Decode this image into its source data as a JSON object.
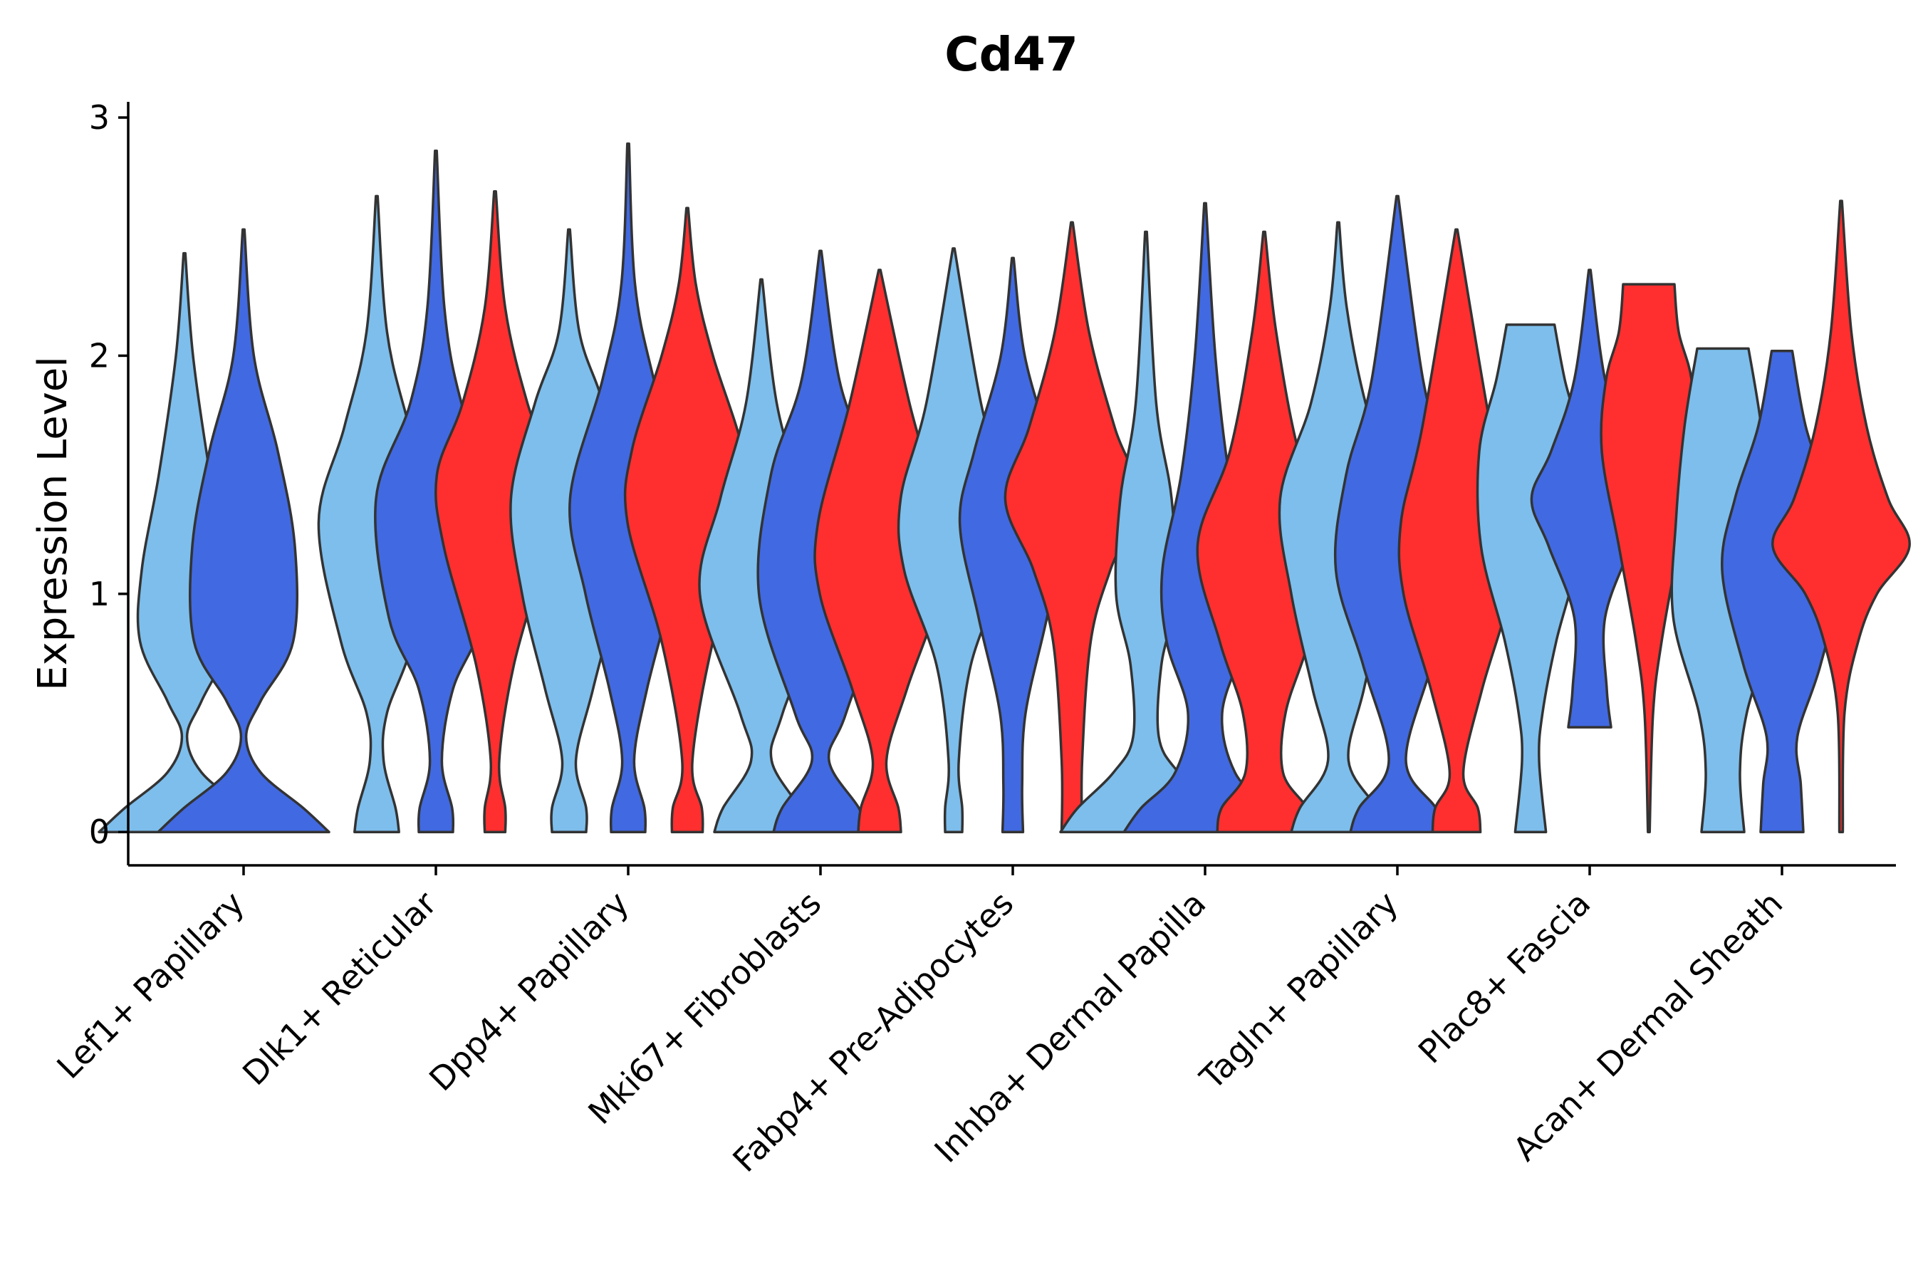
{
  "chart_data": {
    "type": "violin",
    "title": "Cd47",
    "xlabel": "",
    "ylabel": "Expression Level",
    "ylim": [
      -0.14,
      3.03
    ],
    "yticks": [
      0,
      1,
      2,
      3
    ],
    "group_colors": [
      "#7DBEEC",
      "#4169E1",
      "#FF2F2F"
    ],
    "categories": [
      "Lef1+ Papillary",
      "Dlk1+ Reticular",
      "Dpp4+ Papillary",
      "Mki67+ Fibroblasts",
      "Fabp4+ Pre-Adipocytes",
      "Inhba+ Dermal Papilla",
      "Tagln+ Papillary",
      "Plac8+ Fascia",
      "Acan+ Dermal Sheath"
    ],
    "violins": [
      {
        "category": 0,
        "group": 0,
        "min": 0,
        "max": 2.43,
        "profile": [
          [
            0,
            1.0
          ],
          [
            0.1,
            0.7
          ],
          [
            0.25,
            0.2
          ],
          [
            0.4,
            0.03
          ],
          [
            0.55,
            0.2
          ],
          [
            0.8,
            0.52
          ],
          [
            1.1,
            0.5
          ],
          [
            1.5,
            0.3
          ],
          [
            2.0,
            0.1
          ],
          [
            2.43,
            0.01
          ]
        ]
      },
      {
        "category": 0,
        "group": 1,
        "min": 0,
        "max": 2.53,
        "profile": [
          [
            0,
            1.0
          ],
          [
            0.1,
            0.7
          ],
          [
            0.25,
            0.2
          ],
          [
            0.4,
            0.03
          ],
          [
            0.55,
            0.2
          ],
          [
            0.8,
            0.58
          ],
          [
            1.2,
            0.6
          ],
          [
            1.6,
            0.4
          ],
          [
            2.0,
            0.12
          ],
          [
            2.53,
            0.01
          ]
        ]
      },
      {
        "category": 1,
        "group": 0,
        "min": 0,
        "max": 2.67,
        "profile": [
          [
            0,
            0.26
          ],
          [
            0.1,
            0.22
          ],
          [
            0.3,
            0.08
          ],
          [
            0.5,
            0.12
          ],
          [
            0.8,
            0.42
          ],
          [
            1.3,
            0.68
          ],
          [
            1.7,
            0.38
          ],
          [
            2.1,
            0.12
          ],
          [
            2.67,
            0.01
          ]
        ]
      },
      {
        "category": 1,
        "group": 1,
        "min": 0,
        "max": 2.86,
        "profile": [
          [
            0,
            0.2
          ],
          [
            0.1,
            0.19
          ],
          [
            0.3,
            0.07
          ],
          [
            0.6,
            0.2
          ],
          [
            0.9,
            0.55
          ],
          [
            1.4,
            0.7
          ],
          [
            1.8,
            0.3
          ],
          [
            2.2,
            0.1
          ],
          [
            2.86,
            0.01
          ]
        ]
      },
      {
        "category": 1,
        "group": 2,
        "min": 0,
        "max": 2.69,
        "profile": [
          [
            0,
            0.12
          ],
          [
            0.1,
            0.12
          ],
          [
            0.3,
            0.05
          ],
          [
            0.7,
            0.22
          ],
          [
            1.2,
            0.6
          ],
          [
            1.5,
            0.68
          ],
          [
            1.8,
            0.38
          ],
          [
            2.2,
            0.12
          ],
          [
            2.69,
            0.01
          ]
        ]
      },
      {
        "category": 2,
        "group": 0,
        "min": 0,
        "max": 2.53,
        "profile": [
          [
            0,
            0.2
          ],
          [
            0.1,
            0.2
          ],
          [
            0.3,
            0.08
          ],
          [
            0.6,
            0.28
          ],
          [
            1.0,
            0.55
          ],
          [
            1.4,
            0.68
          ],
          [
            1.8,
            0.4
          ],
          [
            2.1,
            0.12
          ],
          [
            2.53,
            0.01
          ]
        ]
      },
      {
        "category": 2,
        "group": 1,
        "min": 0,
        "max": 2.89,
        "profile": [
          [
            0,
            0.2
          ],
          [
            0.1,
            0.19
          ],
          [
            0.3,
            0.07
          ],
          [
            0.6,
            0.22
          ],
          [
            1.0,
            0.5
          ],
          [
            1.4,
            0.68
          ],
          [
            1.9,
            0.3
          ],
          [
            2.3,
            0.08
          ],
          [
            2.89,
            0.01
          ]
        ]
      },
      {
        "category": 2,
        "group": 2,
        "min": 0,
        "max": 2.62,
        "profile": [
          [
            0,
            0.18
          ],
          [
            0.1,
            0.17
          ],
          [
            0.3,
            0.06
          ],
          [
            0.8,
            0.3
          ],
          [
            1.3,
            0.7
          ],
          [
            1.6,
            0.65
          ],
          [
            2.0,
            0.3
          ],
          [
            2.3,
            0.1
          ],
          [
            2.62,
            0.01
          ]
        ]
      },
      {
        "category": 3,
        "group": 0,
        "min": 0,
        "max": 2.32,
        "profile": [
          [
            0,
            0.55
          ],
          [
            0.1,
            0.45
          ],
          [
            0.3,
            0.12
          ],
          [
            0.5,
            0.25
          ],
          [
            1.0,
            0.72
          ],
          [
            1.4,
            0.48
          ],
          [
            1.8,
            0.18
          ],
          [
            2.32,
            0.01
          ]
        ]
      },
      {
        "category": 3,
        "group": 1,
        "min": 0,
        "max": 2.44,
        "profile": [
          [
            0,
            0.55
          ],
          [
            0.1,
            0.45
          ],
          [
            0.3,
            0.1
          ],
          [
            0.5,
            0.3
          ],
          [
            1.0,
            0.72
          ],
          [
            1.5,
            0.58
          ],
          [
            1.9,
            0.22
          ],
          [
            2.44,
            0.01
          ]
        ]
      },
      {
        "category": 3,
        "group": 2,
        "min": 0,
        "max": 2.36,
        "profile": [
          [
            0,
            0.25
          ],
          [
            0.1,
            0.22
          ],
          [
            0.3,
            0.08
          ],
          [
            0.6,
            0.32
          ],
          [
            1.0,
            0.7
          ],
          [
            1.3,
            0.72
          ],
          [
            1.8,
            0.35
          ],
          [
            2.36,
            0.01
          ]
        ]
      },
      {
        "category": 4,
        "group": 0,
        "min": 0,
        "max": 2.45,
        "profile": [
          [
            0,
            0.1
          ],
          [
            0.1,
            0.1
          ],
          [
            0.3,
            0.06
          ],
          [
            0.7,
            0.2
          ],
          [
            1.1,
            0.58
          ],
          [
            1.4,
            0.62
          ],
          [
            1.8,
            0.32
          ],
          [
            2.45,
            0.01
          ]
        ]
      },
      {
        "category": 4,
        "group": 1,
        "min": 0,
        "max": 2.41,
        "profile": [
          [
            0,
            0.12
          ],
          [
            0.2,
            0.11
          ],
          [
            0.5,
            0.15
          ],
          [
            0.9,
            0.4
          ],
          [
            1.3,
            0.62
          ],
          [
            1.6,
            0.45
          ],
          [
            2.0,
            0.14
          ],
          [
            2.41,
            0.01
          ]
        ]
      },
      {
        "category": 4,
        "group": 2,
        "min": 0,
        "max": 2.56,
        "profile": [
          [
            0,
            0.12
          ],
          [
            0.3,
            0.12
          ],
          [
            0.8,
            0.22
          ],
          [
            1.1,
            0.45
          ],
          [
            1.4,
            0.78
          ],
          [
            1.7,
            0.5
          ],
          [
            2.1,
            0.2
          ],
          [
            2.56,
            0.01
          ]
        ]
      },
      {
        "category": 5,
        "group": 0,
        "min": 0,
        "max": 2.52,
        "profile": [
          [
            0,
            1.0
          ],
          [
            0.1,
            0.8
          ],
          [
            0.25,
            0.38
          ],
          [
            0.4,
            0.15
          ],
          [
            0.7,
            0.18
          ],
          [
            1.0,
            0.35
          ],
          [
            1.4,
            0.3
          ],
          [
            1.8,
            0.12
          ],
          [
            2.52,
            0.01
          ]
        ]
      },
      {
        "category": 5,
        "group": 1,
        "min": 0,
        "max": 2.64,
        "profile": [
          [
            0,
            0.95
          ],
          [
            0.1,
            0.75
          ],
          [
            0.25,
            0.35
          ],
          [
            0.5,
            0.2
          ],
          [
            0.8,
            0.45
          ],
          [
            1.1,
            0.5
          ],
          [
            1.5,
            0.28
          ],
          [
            2.0,
            0.12
          ],
          [
            2.64,
            0.01
          ]
        ]
      },
      {
        "category": 5,
        "group": 2,
        "min": 0,
        "max": 2.52,
        "profile": [
          [
            0,
            0.55
          ],
          [
            0.1,
            0.5
          ],
          [
            0.25,
            0.22
          ],
          [
            0.5,
            0.25
          ],
          [
            0.8,
            0.52
          ],
          [
            1.2,
            0.78
          ],
          [
            1.6,
            0.4
          ],
          [
            2.1,
            0.14
          ],
          [
            2.52,
            0.01
          ]
        ]
      },
      {
        "category": 6,
        "group": 0,
        "min": 0,
        "max": 2.56,
        "profile": [
          [
            0,
            0.55
          ],
          [
            0.1,
            0.45
          ],
          [
            0.3,
            0.12
          ],
          [
            0.6,
            0.3
          ],
          [
            1.0,
            0.55
          ],
          [
            1.4,
            0.68
          ],
          [
            1.8,
            0.32
          ],
          [
            2.2,
            0.1
          ],
          [
            2.56,
            0.01
          ]
        ]
      },
      {
        "category": 6,
        "group": 1,
        "min": 0,
        "max": 2.67,
        "profile": [
          [
            0,
            0.55
          ],
          [
            0.1,
            0.45
          ],
          [
            0.3,
            0.1
          ],
          [
            0.7,
            0.4
          ],
          [
            1.1,
            0.72
          ],
          [
            1.5,
            0.6
          ],
          [
            1.9,
            0.3
          ],
          [
            2.67,
            0.01
          ]
        ]
      },
      {
        "category": 6,
        "group": 2,
        "min": 0,
        "max": 2.53,
        "profile": [
          [
            0,
            0.28
          ],
          [
            0.1,
            0.25
          ],
          [
            0.25,
            0.08
          ],
          [
            0.6,
            0.3
          ],
          [
            1.0,
            0.62
          ],
          [
            1.3,
            0.65
          ],
          [
            1.7,
            0.4
          ],
          [
            2.53,
            0.01
          ]
        ]
      },
      {
        "category": 7,
        "group": 0,
        "min": 0,
        "max": 2.13,
        "profile": [
          [
            0,
            0.18
          ],
          [
            0.3,
            0.1
          ],
          [
            0.5,
            0.14
          ],
          [
            0.8,
            0.3
          ],
          [
            1.2,
            0.58
          ],
          [
            1.6,
            0.6
          ],
          [
            1.9,
            0.4
          ],
          [
            2.13,
            0.28
          ]
        ]
      },
      {
        "category": 7,
        "group": 1,
        "min": 0.44,
        "max": 2.36,
        "profile": [
          [
            0.44,
            0.25
          ],
          [
            0.6,
            0.2
          ],
          [
            0.9,
            0.18
          ],
          [
            1.2,
            0.48
          ],
          [
            1.4,
            0.68
          ],
          [
            1.6,
            0.45
          ],
          [
            1.9,
            0.18
          ],
          [
            2.36,
            0.01
          ]
        ]
      },
      {
        "category": 7,
        "group": 2,
        "min": 0,
        "max": 2.3,
        "profile": [
          [
            0,
            0.01
          ],
          [
            0.5,
            0.05
          ],
          [
            0.8,
            0.15
          ],
          [
            1.2,
            0.35
          ],
          [
            1.6,
            0.55
          ],
          [
            1.9,
            0.5
          ],
          [
            2.1,
            0.35
          ],
          [
            2.3,
            0.3
          ]
        ]
      },
      {
        "category": 8,
        "group": 0,
        "min": 0,
        "max": 2.03,
        "profile": [
          [
            0,
            0.25
          ],
          [
            0.25,
            0.2
          ],
          [
            0.5,
            0.28
          ],
          [
            0.9,
            0.58
          ],
          [
            1.3,
            0.55
          ],
          [
            1.7,
            0.45
          ],
          [
            2.03,
            0.3
          ]
        ]
      },
      {
        "category": 8,
        "group": 1,
        "min": 0,
        "max": 2.02,
        "profile": [
          [
            0,
            0.25
          ],
          [
            0.2,
            0.22
          ],
          [
            0.4,
            0.18
          ],
          [
            0.7,
            0.45
          ],
          [
            1.1,
            0.7
          ],
          [
            1.4,
            0.55
          ],
          [
            1.7,
            0.28
          ],
          [
            2.02,
            0.12
          ]
        ]
      },
      {
        "category": 8,
        "group": 2,
        "min": 0,
        "max": 2.65,
        "profile": [
          [
            0,
            0.02
          ],
          [
            0.5,
            0.04
          ],
          [
            0.8,
            0.2
          ],
          [
            1.0,
            0.42
          ],
          [
            1.2,
            0.8
          ],
          [
            1.4,
            0.55
          ],
          [
            1.7,
            0.3
          ],
          [
            2.1,
            0.12
          ],
          [
            2.65,
            0.01
          ]
        ]
      }
    ]
  }
}
